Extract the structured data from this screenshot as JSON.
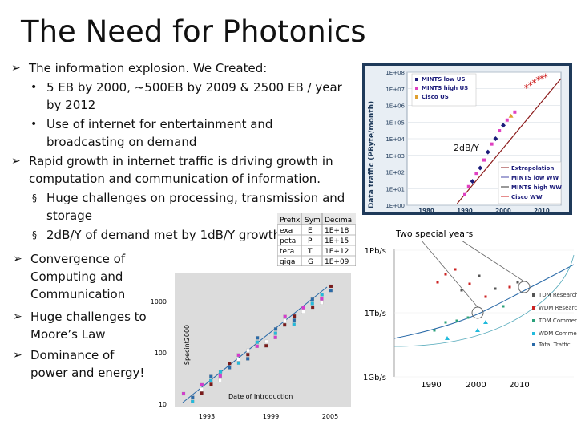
{
  "title": "The Need for Photonics",
  "bullets": [
    {
      "lines": [
        "The information explosion. We Created:"
      ],
      "sub": [
        {
          "lines": [
            "5 EB by 2000, ~500EB by 2009  & 2500  EB / year",
            "by 2012"
          ]
        },
        {
          "lines": [
            "Use of internet for entertainment and",
            "broadcasting on demand"
          ]
        }
      ]
    },
    {
      "lines": [
        "Rapid growth in internet traffic is driving growth in",
        "computation and communication of information."
      ],
      "sub": [
        {
          "lines": [
            "Huge challenges on processing, transmission and",
            "storage"
          ]
        },
        {
          "lines": [
            "2dB/Y of demand met by 1dB/Y growth"
          ]
        }
      ]
    },
    {
      "lines": [
        "Convergence of",
        "Computing and",
        "Communication"
      ]
    },
    {
      "lines": [
        "Huge challenges to",
        "Moore’s Law"
      ]
    },
    {
      "lines": [
        "Dominance of",
        "power and energy!"
      ]
    }
  ],
  "prefix_table": {
    "headers": [
      "Prefix",
      "Sym",
      "Decimal"
    ],
    "rows": [
      [
        "exa",
        "E",
        "1E+18"
      ],
      [
        "peta",
        "P",
        "1E+15"
      ],
      [
        "tera",
        "T",
        "1E+12"
      ],
      [
        "giga",
        "G",
        "1E+09"
      ]
    ]
  },
  "traffic_chart": {
    "yaxis_label": "Data traffic (PByte/month)",
    "yticks": [
      "1E+08",
      "1E+07",
      "1E+06",
      "1E+05",
      "1E+04",
      "1E+03",
      "1E+02",
      "1E+01",
      "1E+00"
    ],
    "xticks": [
      "1980",
      "1990",
      "2000",
      "2010"
    ],
    "legend_top": [
      "MINTS low US",
      "MINTS high US",
      "Cisco US"
    ],
    "legend_bottom": [
      "Extrapolation",
      "MINTS low WW",
      "MINTS high WW",
      "Cisco WW"
    ],
    "annotation": "2dB/Y",
    "colors": {
      "background": "#e8eef4",
      "frame": "#1f3a5a",
      "trend": "#8b1a1a",
      "low": "#1b1b7a",
      "high": "#e040c0",
      "cisco": "#e0a030"
    }
  },
  "specint_chart": {
    "yaxis_label": "Specint2000",
    "xaxis_label": "Date of Introduction",
    "yticks": [
      "1000",
      "100",
      "10"
    ],
    "xticks": [
      "1993",
      "1999",
      "2005"
    ]
  },
  "capacity_chart": {
    "caption": "Two special years",
    "yticks": [
      "1Pb/s",
      "1Tb/s",
      "1Gb/s"
    ],
    "xticks": [
      "1990",
      "2000",
      "2010"
    ],
    "legend": [
      "TDM Research",
      "WDM Research",
      "TDM Commercial",
      "WDM Commercial",
      "Total Traffic"
    ],
    "colors": {
      "tdm_research": "#555555",
      "wdm_research": "#cc2222",
      "tdm_commercial": "#2aa07a",
      "wdm_commercial": "#22bbdd",
      "total": "#2a6aa8"
    }
  }
}
